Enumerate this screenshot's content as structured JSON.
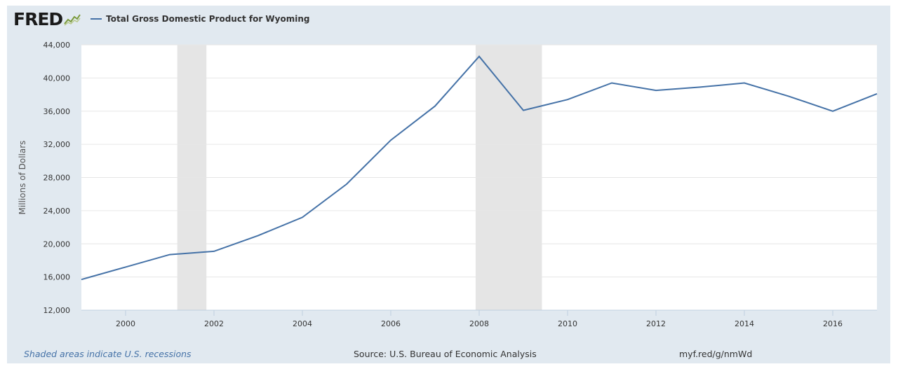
{
  "header": {
    "logo_text": "FRED",
    "logo_icon": "line-graph-icon",
    "series_label": "Total Gross Domestic Product for Wyoming"
  },
  "footer": {
    "recession_note": "Shaded areas indicate U.S. recessions",
    "source": "Source: U.S. Bureau of Economic Analysis",
    "short_url": "myf.red/g/nmWd"
  },
  "colors": {
    "line": "#4572a7",
    "recession": "#e5e5e5",
    "frame": "#e1e9f0",
    "grid": "#e6e6e6"
  },
  "chart_data": {
    "type": "line",
    "title": "",
    "xlabel": "",
    "ylabel": "Millions of Dollars",
    "xlim": [
      1999,
      2017
    ],
    "ylim": [
      12000,
      44000
    ],
    "x_ticks": [
      2000,
      2002,
      2004,
      2006,
      2008,
      2010,
      2012,
      2014,
      2016
    ],
    "y_ticks": [
      12000,
      16000,
      20000,
      24000,
      28000,
      32000,
      36000,
      40000,
      44000
    ],
    "y_tick_labels": [
      "12,000",
      "16,000",
      "20,000",
      "24,000",
      "28,000",
      "32,000",
      "36,000",
      "40,000",
      "44,000"
    ],
    "grid": true,
    "legend": "top-left",
    "recessions": [
      [
        2001.17,
        2001.83
      ],
      [
        2007.92,
        2009.42
      ]
    ],
    "series": [
      {
        "name": "Total Gross Domestic Product for Wyoming",
        "x": [
          1999,
          2000,
          2001,
          2002,
          2003,
          2004,
          2005,
          2006,
          2007,
          2008,
          2009,
          2010,
          2011,
          2012,
          2013,
          2014,
          2015,
          2016,
          2017
        ],
        "values": [
          15700,
          17200,
          18700,
          19100,
          21000,
          23200,
          27200,
          32500,
          36600,
          42600,
          36100,
          37400,
          39400,
          38500,
          38900,
          39400,
          37800,
          36000,
          38100
        ]
      }
    ]
  }
}
